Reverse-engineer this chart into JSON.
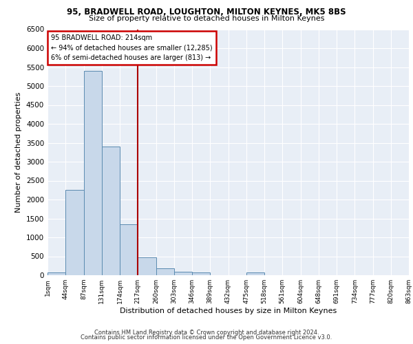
{
  "title1": "95, BRADWELL ROAD, LOUGHTON, MILTON KEYNES, MK5 8BS",
  "title2": "Size of property relative to detached houses in Milton Keynes",
  "xlabel": "Distribution of detached houses by size in Milton Keynes",
  "ylabel": "Number of detached properties",
  "bar_color": "#c8d8ea",
  "bar_edge_color": "#5a8ab0",
  "bar_heights": [
    75,
    2250,
    5400,
    3400,
    1350,
    475,
    180,
    100,
    75,
    0,
    0,
    75,
    0,
    0,
    0,
    0,
    0,
    0,
    0,
    0
  ],
  "bin_labels": [
    "1sqm",
    "44sqm",
    "87sqm",
    "131sqm",
    "174sqm",
    "217sqm",
    "260sqm",
    "303sqm",
    "346sqm",
    "389sqm",
    "432sqm",
    "475sqm",
    "518sqm",
    "561sqm",
    "604sqm",
    "648sqm",
    "691sqm",
    "734sqm",
    "777sqm",
    "820sqm",
    "863sqm"
  ],
  "red_line_color": "#aa0000",
  "annotation_text": "95 BRADWELL ROAD: 214sqm\n← 94% of detached houses are smaller (12,285)\n6% of semi-detached houses are larger (813) →",
  "annotation_box_color": "#ffffff",
  "annotation_box_edge": "#cc0000",
  "ylim": [
    0,
    6500
  ],
  "yticks": [
    0,
    500,
    1000,
    1500,
    2000,
    2500,
    3000,
    3500,
    4000,
    4500,
    5000,
    5500,
    6000,
    6500
  ],
  "footer1": "Contains HM Land Registry data © Crown copyright and database right 2024.",
  "footer2": "Contains public sector information licensed under the Open Government Licence v3.0.",
  "bg_color": "#e8eef6",
  "grid_color": "#ffffff"
}
